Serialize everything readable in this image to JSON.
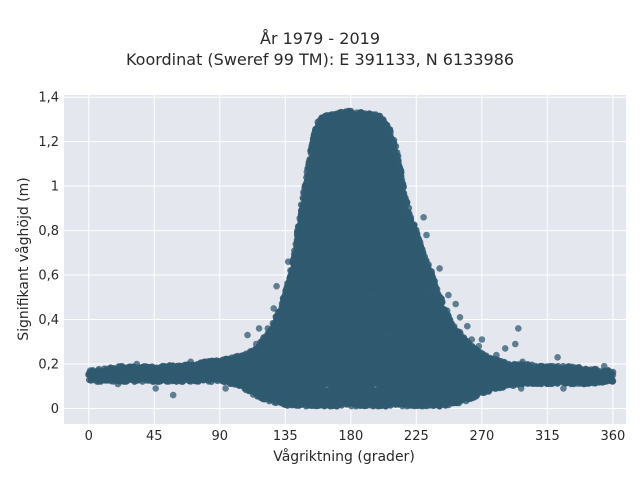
{
  "chart_data": {
    "type": "scatter",
    "title": "År 1979 - 2019",
    "subtitle": "Koordinat (Sweref 99 TM): E 391133, N 6133986",
    "xlabel": "Vågriktning (grader)",
    "ylabel": "Signifikant våghöjd (m)",
    "xlim": [
      -17,
      369
    ],
    "ylim": [
      -0.07,
      1.41
    ],
    "x_ticks": [
      0,
      45,
      90,
      135,
      180,
      225,
      270,
      315,
      360
    ],
    "x_tick_labels": [
      "0",
      "45",
      "90",
      "135",
      "180",
      "225",
      "270",
      "315",
      "360"
    ],
    "y_ticks": [
      0,
      0.2,
      0.4,
      0.6,
      0.8,
      1.0,
      1.2,
      1.4
    ],
    "y_tick_labels": [
      "0",
      "0,2",
      "0,4",
      "0,6",
      "0,8",
      "1",
      "1,2",
      "1,4"
    ],
    "grid": true,
    "point_color": "#2f5a70",
    "plot_background": "#e5e7ef",
    "envelope": {
      "x": [
        0,
        20,
        45,
        70,
        90,
        105,
        115,
        125,
        132,
        138,
        143,
        148,
        152,
        155,
        158,
        163,
        170,
        180,
        190,
        200,
        205,
        210,
        215,
        218,
        222,
        226,
        230,
        235,
        240,
        245,
        250,
        258,
        265,
        272,
        280,
        290,
        300,
        315,
        330,
        345,
        360
      ],
      "y_max": [
        0.17,
        0.19,
        0.19,
        0.2,
        0.22,
        0.24,
        0.27,
        0.36,
        0.46,
        0.6,
        0.78,
        1.0,
        1.15,
        1.25,
        1.3,
        1.32,
        1.33,
        1.34,
        1.33,
        1.32,
        1.28,
        1.2,
        1.05,
        0.95,
        0.85,
        0.78,
        0.7,
        0.62,
        0.53,
        0.45,
        0.38,
        0.32,
        0.27,
        0.24,
        0.22,
        0.2,
        0.2,
        0.19,
        0.19,
        0.18,
        0.17
      ],
      "y_min": [
        0.12,
        0.12,
        0.12,
        0.12,
        0.12,
        0.1,
        0.05,
        0.03,
        0.02,
        0.01,
        0.01,
        0.01,
        0.01,
        0.01,
        0.01,
        0.01,
        0.01,
        0.01,
        0.01,
        0.01,
        0.01,
        0.01,
        0.01,
        0.01,
        0.01,
        0.01,
        0.01,
        0.01,
        0.01,
        0.01,
        0.02,
        0.03,
        0.05,
        0.07,
        0.09,
        0.1,
        0.11,
        0.11,
        0.11,
        0.11,
        0.12
      ]
    },
    "outliers": [
      {
        "x": 1,
        "y": 0.17
      },
      {
        "x": 20,
        "y": 0.11
      },
      {
        "x": 33,
        "y": 0.2
      },
      {
        "x": 46,
        "y": 0.09
      },
      {
        "x": 58,
        "y": 0.06
      },
      {
        "x": 70,
        "y": 0.21
      },
      {
        "x": 80,
        "y": 0.21
      },
      {
        "x": 94,
        "y": 0.09
      },
      {
        "x": 109,
        "y": 0.33
      },
      {
        "x": 115,
        "y": 0.29
      },
      {
        "x": 117,
        "y": 0.36
      },
      {
        "x": 123,
        "y": 0.36
      },
      {
        "x": 127,
        "y": 0.45
      },
      {
        "x": 129,
        "y": 0.55
      },
      {
        "x": 136,
        "y": 0.49
      },
      {
        "x": 137,
        "y": 0.66
      },
      {
        "x": 131,
        "y": 0.06
      },
      {
        "x": 154,
        "y": 0.99
      },
      {
        "x": 230,
        "y": 0.86
      },
      {
        "x": 232,
        "y": 0.78
      },
      {
        "x": 241,
        "y": 0.63
      },
      {
        "x": 247,
        "y": 0.51
      },
      {
        "x": 252,
        "y": 0.47
      },
      {
        "x": 255,
        "y": 0.41
      },
      {
        "x": 260,
        "y": 0.37
      },
      {
        "x": 263,
        "y": 0.31
      },
      {
        "x": 268,
        "y": 0.28
      },
      {
        "x": 270,
        "y": 0.31
      },
      {
        "x": 280,
        "y": 0.24
      },
      {
        "x": 286,
        "y": 0.27
      },
      {
        "x": 293,
        "y": 0.29
      },
      {
        "x": 295,
        "y": 0.36
      },
      {
        "x": 298,
        "y": 0.21
      },
      {
        "x": 297,
        "y": 0.09
      },
      {
        "x": 317,
        "y": 0.19
      },
      {
        "x": 322,
        "y": 0.23
      },
      {
        "x": 326,
        "y": 0.09
      },
      {
        "x": 340,
        "y": 0.11
      },
      {
        "x": 354,
        "y": 0.19
      },
      {
        "x": 360,
        "y": 0.15
      }
    ]
  }
}
